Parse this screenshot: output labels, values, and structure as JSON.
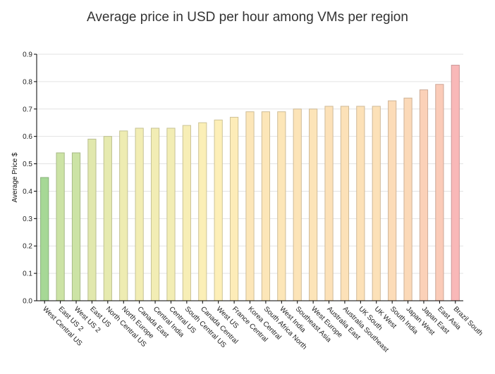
{
  "chart_data": {
    "type": "bar",
    "title": "Average price in USD per hour among VMs per region",
    "xlabel": "",
    "ylabel": "Average Price $",
    "ylim": [
      0,
      0.9
    ],
    "yticks": [
      "0.0",
      "0.1",
      "0.2",
      "0.3",
      "0.4",
      "0.5",
      "0.6",
      "0.7",
      "0.8",
      "0.9"
    ],
    "grid": true,
    "categories": [
      "West Central US",
      "East US 2",
      "West US 2",
      "East US",
      "North Central US",
      "North Europe",
      "Canada East",
      "Central India",
      "Central US",
      "South Central US",
      "Canada Central",
      "West US",
      "France Central",
      "Korea Central",
      "South Africa North",
      "West India",
      "Southeast Asia",
      "West Europe",
      "Australia East",
      "Australia Southeast",
      "UK South",
      "UK West",
      "South India",
      "Japan West",
      "Japan East",
      "East Asia",
      "Brazil South"
    ],
    "values": [
      0.45,
      0.54,
      0.54,
      0.59,
      0.6,
      0.62,
      0.63,
      0.63,
      0.63,
      0.64,
      0.65,
      0.66,
      0.67,
      0.69,
      0.69,
      0.69,
      0.7,
      0.7,
      0.71,
      0.71,
      0.71,
      0.71,
      0.73,
      0.74,
      0.77,
      0.79,
      0.86
    ],
    "colors": {
      "low": "#a6d896",
      "mid": "#fdf0b8",
      "high": "#f9b8b8",
      "gridline": "#e3e3e3",
      "axis": "#000000"
    }
  }
}
